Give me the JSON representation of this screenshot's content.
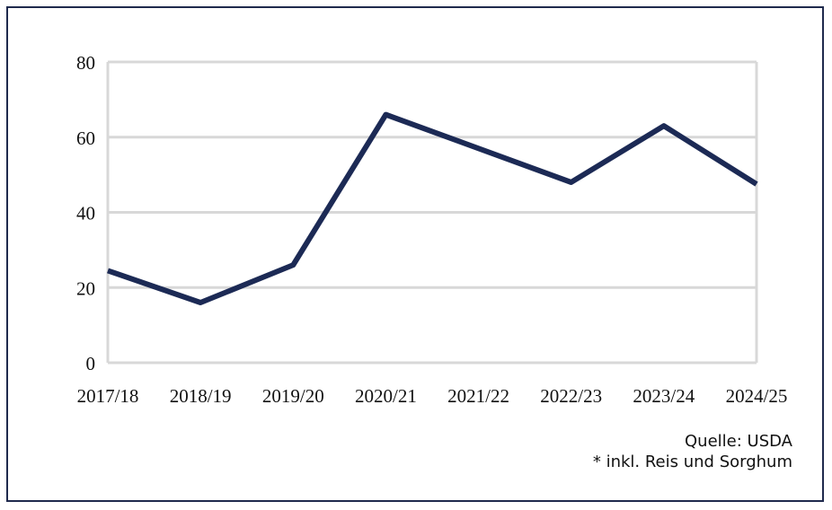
{
  "chart_data": {
    "type": "line",
    "categories": [
      "2017/18",
      "2018/19",
      "2019/20",
      "2020/21",
      "2021/22",
      "2022/23",
      "2023/24",
      "2024/25"
    ],
    "series": [
      {
        "values": [
          24.5,
          16,
          26,
          66,
          57,
          48,
          63,
          47.5
        ]
      }
    ],
    "title": "",
    "xlabel": "",
    "ylabel": "",
    "ylim": [
      0,
      80
    ],
    "yticks": [
      0,
      20,
      40,
      60,
      80
    ],
    "grid": true,
    "line_color": "#1c2a55",
    "grid_color": "#d8d8d8"
  },
  "notes": {
    "source": "Quelle: USDA",
    "footnote": "* inkl. Reis und Sorghum"
  }
}
